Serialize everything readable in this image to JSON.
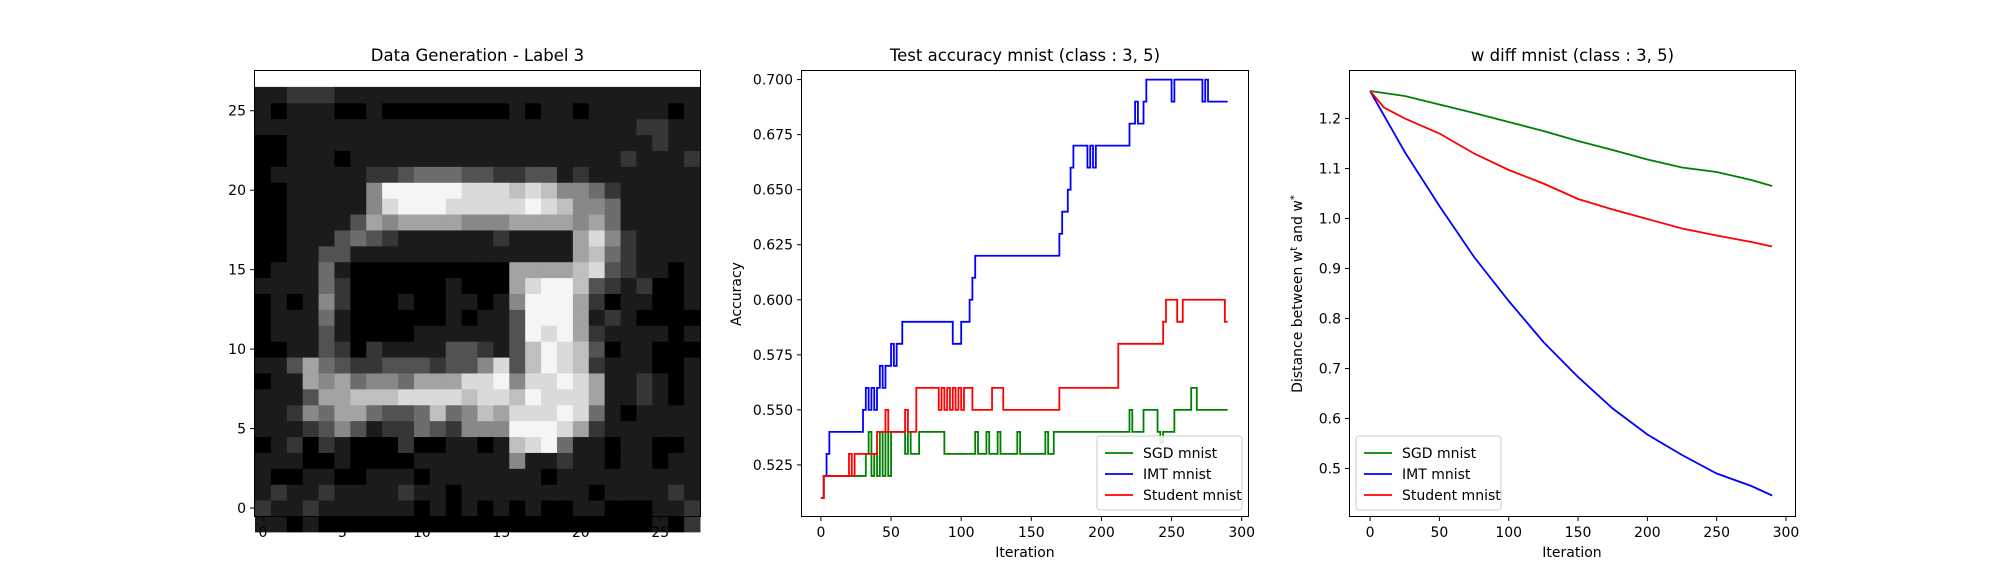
{
  "chart_data": [
    {
      "type": "heatmap",
      "title": "Data Generation - Label 3",
      "xlabel": "",
      "ylabel": "",
      "x_range": [
        -0.5,
        27.5
      ],
      "y_range": [
        27.5,
        -0.5
      ],
      "x_ticks": [
        "0",
        "5",
        "10",
        "15",
        "20",
        "25"
      ],
      "y_ticks": [
        "0",
        "5",
        "10",
        "15",
        "20",
        "25"
      ],
      "colormap": "gray",
      "pixels": [
        "1101000000000000000000000102",
        "2112111111010101010011000112",
        "1211211112110111111110111121",
        "1001100111011111110111111111",
        "1110010000111111511211011011",
        "0120210002001101789411011001",
        "1112353122432555999862111111",
        "1125466433474576888984101111",
        "1113667778888788798886112101",
        "0116564554666889588986112101",
        "1136432233323358379872111001",
        "0011320211113321379873011000",
        "0111310000111111398962111101",
        "0111410000001011399961210000",
        "0101520001001101599962011001",
        "1111420000001000689973212001",
        "0111410000000000666678321101",
        "0011331111111111111167421111",
        "0011134321111112111168521111",
        "0011113656666555666656411111",
        "0011111589998888898755411111",
        "0011111599999888787554211111",
        "0111111223444332233121111111",
        "0011101111111111111111121112",
        "0011111111111111111111111211",
        "1111111111111111111111112211",
        "1011100100000000101101111101",
        "1122211111111111111111111111"
      ]
    },
    {
      "type": "line",
      "title": "Test accuracy mnist (class : 3, 5)",
      "xlabel": "Iteration",
      "ylabel": "Accuracy",
      "xlim": [
        -13.5,
        304.5
      ],
      "ylim": [
        0.5018,
        0.7039
      ],
      "x_ticks": [
        "0",
        "50",
        "100",
        "150",
        "200",
        "250",
        "300"
      ],
      "y_ticks": [
        "0.525",
        "0.550",
        "0.575",
        "0.600",
        "0.625",
        "0.650",
        "0.675",
        "0.700"
      ],
      "legend_position": "lower-right",
      "series": [
        {
          "name": "SGD mnist",
          "color": "#008000",
          "steps": [
            [
              0,
              0.51
            ],
            [
              2,
              0.52
            ],
            [
              32,
              0.53
            ],
            [
              34,
              0.54
            ],
            [
              36,
              0.52
            ],
            [
              38,
              0.53
            ],
            [
              40,
              0.52
            ],
            [
              42,
              0.54
            ],
            [
              44,
              0.52
            ],
            [
              46,
              0.54
            ],
            [
              48,
              0.52
            ],
            [
              50,
              0.54
            ],
            [
              60,
              0.53
            ],
            [
              62,
              0.54
            ],
            [
              64,
              0.53
            ],
            [
              70,
              0.54
            ],
            [
              88,
              0.53
            ],
            [
              110,
              0.54
            ],
            [
              112,
              0.53
            ],
            [
              118,
              0.54
            ],
            [
              120,
              0.53
            ],
            [
              126,
              0.54
            ],
            [
              128,
              0.53
            ],
            [
              140,
              0.54
            ],
            [
              142,
              0.53
            ],
            [
              160,
              0.54
            ],
            [
              162,
              0.53
            ],
            [
              166,
              0.54
            ],
            [
              220,
              0.55
            ],
            [
              222,
              0.54
            ],
            [
              230,
              0.55
            ],
            [
              240,
              0.54
            ],
            [
              242,
              0.535
            ],
            [
              244,
              0.54
            ],
            [
              252,
              0.55
            ],
            [
              262,
              0.55
            ],
            [
              264,
              0.56
            ],
            [
              268,
              0.55
            ],
            [
              290,
              0.55
            ]
          ]
        },
        {
          "name": "IMT mnist",
          "color": "#0000ff",
          "steps": [
            [
              0,
              0.51
            ],
            [
              2,
              0.52
            ],
            [
              4,
              0.53
            ],
            [
              6,
              0.54
            ],
            [
              30,
              0.55
            ],
            [
              32,
              0.56
            ],
            [
              34,
              0.55
            ],
            [
              36,
              0.56
            ],
            [
              38,
              0.55
            ],
            [
              40,
              0.56
            ],
            [
              42,
              0.57
            ],
            [
              44,
              0.56
            ],
            [
              46,
              0.57
            ],
            [
              50,
              0.58
            ],
            [
              52,
              0.57
            ],
            [
              54,
              0.58
            ],
            [
              58,
              0.59
            ],
            [
              94,
              0.58
            ],
            [
              100,
              0.59
            ],
            [
              106,
              0.6
            ],
            [
              108,
              0.61
            ],
            [
              110,
              0.62
            ],
            [
              170,
              0.63
            ],
            [
              172,
              0.64
            ],
            [
              176,
              0.65
            ],
            [
              178,
              0.66
            ],
            [
              180,
              0.67
            ],
            [
              190,
              0.66
            ],
            [
              192,
              0.67
            ],
            [
              194,
              0.66
            ],
            [
              196,
              0.67
            ],
            [
              220,
              0.68
            ],
            [
              224,
              0.69
            ],
            [
              226,
              0.68
            ],
            [
              230,
              0.69
            ],
            [
              232,
              0.7
            ],
            [
              250,
              0.69
            ],
            [
              252,
              0.7
            ],
            [
              262,
              0.7
            ],
            [
              272,
              0.69
            ],
            [
              274,
              0.7
            ],
            [
              276,
              0.69
            ],
            [
              290,
              0.69
            ]
          ]
        },
        {
          "name": "Student mnist",
          "color": "#ff0000",
          "steps": [
            [
              0,
              0.51
            ],
            [
              2,
              0.52
            ],
            [
              20,
              0.53
            ],
            [
              22,
              0.52
            ],
            [
              24,
              0.53
            ],
            [
              40,
              0.54
            ],
            [
              46,
              0.55
            ],
            [
              48,
              0.54
            ],
            [
              60,
              0.55
            ],
            [
              62,
              0.54
            ],
            [
              68,
              0.56
            ],
            [
              84,
              0.55
            ],
            [
              86,
              0.56
            ],
            [
              88,
              0.55
            ],
            [
              90,
              0.56
            ],
            [
              92,
              0.55
            ],
            [
              94,
              0.56
            ],
            [
              96,
              0.55
            ],
            [
              98,
              0.56
            ],
            [
              100,
              0.55
            ],
            [
              102,
              0.56
            ],
            [
              108,
              0.55
            ],
            [
              122,
              0.56
            ],
            [
              130,
              0.55
            ],
            [
              170,
              0.56
            ],
            [
              212,
              0.58
            ],
            [
              244,
              0.59
            ],
            [
              246,
              0.6
            ],
            [
              254,
              0.59
            ],
            [
              258,
              0.6
            ],
            [
              288,
              0.59
            ],
            [
              290,
              0.59
            ]
          ]
        }
      ]
    },
    {
      "type": "line",
      "title": "w diff mnist (class : 3, 5)",
      "xlabel": "Iteration",
      "ylabel": "Distance between w^t and w^*",
      "xlim": [
        -14.5,
        306.5
      ],
      "ylim": [
        0.405,
        1.295
      ],
      "x_ticks": [
        "0",
        "50",
        "100",
        "150",
        "200",
        "250",
        "300"
      ],
      "y_ticks": [
        "0.5",
        "0.6",
        "0.7",
        "0.8",
        "0.9",
        "1.0",
        "1.1",
        "1.2"
      ],
      "legend_position": "lower-left",
      "series": [
        {
          "name": "SGD mnist",
          "color": "#008000",
          "points": [
            [
              0,
              1.255
            ],
            [
              25,
              1.245
            ],
            [
              50,
              1.228
            ],
            [
              75,
              1.211
            ],
            [
              100,
              1.193
            ],
            [
              125,
              1.175
            ],
            [
              150,
              1.155
            ],
            [
              175,
              1.137
            ],
            [
              200,
              1.118
            ],
            [
              225,
              1.102
            ],
            [
              250,
              1.093
            ],
            [
              275,
              1.077
            ],
            [
              290,
              1.065
            ]
          ]
        },
        {
          "name": "IMT mnist",
          "color": "#0000ff",
          "points": [
            [
              0,
              1.255
            ],
            [
              25,
              1.133
            ],
            [
              50,
              1.025
            ],
            [
              75,
              0.923
            ],
            [
              100,
              0.835
            ],
            [
              125,
              0.753
            ],
            [
              150,
              0.683
            ],
            [
              175,
              0.62
            ],
            [
              200,
              0.568
            ],
            [
              225,
              0.527
            ],
            [
              250,
              0.49
            ],
            [
              275,
              0.465
            ],
            [
              290,
              0.446
            ]
          ]
        },
        {
          "name": "Student mnist",
          "color": "#ff0000",
          "points": [
            [
              0,
              1.255
            ],
            [
              10,
              1.222
            ],
            [
              25,
              1.2
            ],
            [
              50,
              1.17
            ],
            [
              75,
              1.13
            ],
            [
              100,
              1.097
            ],
            [
              125,
              1.07
            ],
            [
              150,
              1.039
            ],
            [
              175,
              1.018
            ],
            [
              200,
              0.999
            ],
            [
              225,
              0.98
            ],
            [
              250,
              0.966
            ],
            [
              275,
              0.953
            ],
            [
              290,
              0.944
            ]
          ]
        }
      ]
    }
  ]
}
